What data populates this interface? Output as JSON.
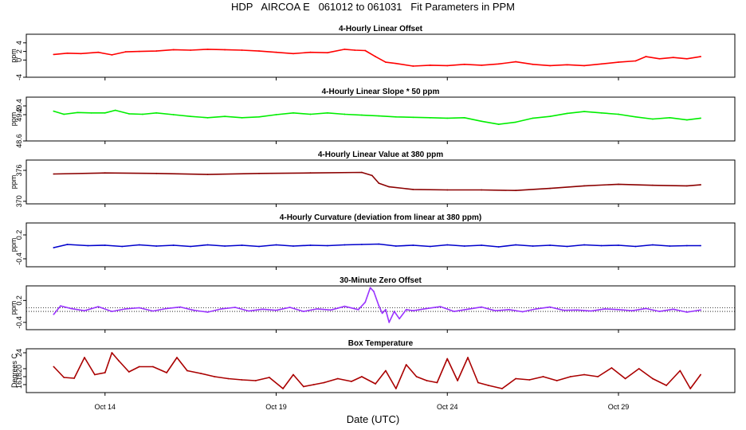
{
  "header": {
    "title": "HDP   AIRCOA E   061012 to 061031   Fit Parameters in PPM"
  },
  "x_axis": {
    "label": "Date (UTC)",
    "tick_labels": [
      "Oct 14",
      "Oct 19",
      "Oct 24",
      "Oct 29"
    ]
  },
  "chart_data": [
    {
      "type": "line",
      "title": "4-Hourly Linear Offset",
      "ylabel": "ppm",
      "ylim": [
        -4,
        6
      ],
      "y_ticks": [
        -4,
        0,
        2,
        4
      ],
      "color": "#ff0000",
      "series": [
        {
          "x": [
            12.5,
            12.9,
            13.3,
            13.8,
            14.2,
            14.6,
            15.0,
            15.5,
            16.0,
            16.5,
            17.0,
            17.5,
            18.0,
            18.5,
            19.0,
            19.5,
            20.0,
            20.5,
            21.0,
            21.3,
            21.6,
            21.9,
            22.2,
            22.5,
            23.0,
            23.5,
            24.0,
            24.5,
            25.0,
            25.5,
            26.0,
            26.5,
            27.0,
            27.5,
            28.0,
            28.5,
            29.0,
            29.5,
            29.8,
            30.2,
            30.6,
            31.0,
            31.4
          ],
          "y": [
            1.3,
            1.6,
            1.5,
            1.8,
            1.2,
            1.9,
            2.0,
            2.1,
            2.4,
            2.3,
            2.5,
            2.4,
            2.3,
            2.1,
            1.8,
            1.5,
            1.8,
            1.7,
            2.5,
            2.3,
            2.2,
            0.8,
            -0.5,
            -0.8,
            -1.4,
            -1.2,
            -1.3,
            -1.0,
            -1.2,
            -0.9,
            -0.4,
            -1.0,
            -1.3,
            -1.1,
            -1.3,
            -0.9,
            -0.5,
            -0.2,
            0.8,
            0.3,
            0.6,
            0.3,
            0.8
          ]
        }
      ]
    },
    {
      "type": "line",
      "title": "4-Hourly Linear Slope * 50 ppm",
      "ylabel": "ppm",
      "ylim": [
        48.6,
        49.6
      ],
      "y_ticks": [
        48.6,
        49.2,
        49.4
      ],
      "color": "#00ee00",
      "series": [
        {
          "x": [
            12.5,
            12.8,
            13.2,
            13.6,
            14.0,
            14.3,
            14.7,
            15.1,
            15.5,
            16.0,
            16.5,
            17.0,
            17.5,
            18.0,
            18.5,
            19.0,
            19.5,
            20.0,
            20.5,
            21.0,
            21.5,
            22.0,
            22.5,
            23.0,
            23.5,
            24.0,
            24.5,
            25.0,
            25.5,
            26.0,
            26.5,
            27.0,
            27.5,
            28.0,
            28.5,
            29.0,
            29.5,
            30.0,
            30.5,
            31.0,
            31.4
          ],
          "y": [
            49.28,
            49.21,
            49.25,
            49.24,
            49.24,
            49.3,
            49.22,
            49.21,
            49.24,
            49.2,
            49.16,
            49.13,
            49.16,
            49.13,
            49.15,
            49.2,
            49.24,
            49.21,
            49.24,
            49.21,
            49.19,
            49.17,
            49.15,
            49.14,
            49.13,
            49.12,
            49.13,
            49.05,
            48.98,
            49.03,
            49.12,
            49.16,
            49.23,
            49.27,
            49.24,
            49.21,
            49.15,
            49.1,
            49.13,
            49.08,
            49.12
          ]
        }
      ]
    },
    {
      "type": "line",
      "title": "4-Hourly Linear Value at 380 ppm",
      "ylabel": "ppm",
      "ylim": [
        369.5,
        378
      ],
      "y_ticks": [
        370,
        376
      ],
      "color": "#8b0000",
      "series": [
        {
          "x": [
            12.5,
            14.0,
            15.5,
            17.0,
            18.5,
            20.0,
            21.5,
            21.8,
            22.0,
            22.3,
            23.0,
            24.0,
            25.0,
            26.0,
            27.0,
            28.0,
            29.0,
            30.0,
            31.0,
            31.4
          ],
          "y": [
            375.3,
            375.5,
            375.4,
            375.2,
            375.4,
            375.5,
            375.6,
            375.0,
            373.5,
            372.8,
            372.3,
            372.2,
            372.2,
            372.1,
            372.5,
            373.0,
            373.3,
            373.1,
            373.0,
            373.2
          ]
        }
      ]
    },
    {
      "type": "line",
      "title": "4-Hourly Curvature (deviation from linear at 380 ppm)",
      "ylabel": "ppm",
      "ylim": [
        -0.6,
        0.5
      ],
      "y_ticks": [
        -0.4,
        0.2
      ],
      "color": "#0000cc",
      "series": [
        {
          "x": [
            12.5,
            12.9,
            13.5,
            14.0,
            14.5,
            15.0,
            15.5,
            16.0,
            16.5,
            17.0,
            17.5,
            18.0,
            18.5,
            19.0,
            19.5,
            20.0,
            20.5,
            21.0,
            21.5,
            22.0,
            22.5,
            23.0,
            23.5,
            24.0,
            24.5,
            25.0,
            25.5,
            26.0,
            26.5,
            27.0,
            27.5,
            28.0,
            28.5,
            29.0,
            29.5,
            30.0,
            30.5,
            31.0,
            31.4
          ],
          "y": [
            -0.12,
            -0.04,
            -0.07,
            -0.06,
            -0.09,
            -0.05,
            -0.08,
            -0.06,
            -0.09,
            -0.05,
            -0.08,
            -0.06,
            -0.09,
            -0.05,
            -0.08,
            -0.06,
            -0.07,
            -0.05,
            -0.04,
            -0.03,
            -0.08,
            -0.06,
            -0.09,
            -0.05,
            -0.08,
            -0.06,
            -0.1,
            -0.05,
            -0.08,
            -0.06,
            -0.09,
            -0.05,
            -0.07,
            -0.06,
            -0.09,
            -0.05,
            -0.08,
            -0.07,
            -0.07
          ]
        }
      ]
    },
    {
      "type": "line",
      "title": "30-Minute Zero Offset",
      "ylabel": "ppm",
      "ylim": [
        -0.6,
        0.6
      ],
      "y_ticks": [
        -0.4,
        0.2
      ],
      "color": "#9933ff",
      "series": [
        {
          "x": [
            12.5,
            12.7,
            13.0,
            13.4,
            13.8,
            14.2,
            14.6,
            15.0,
            15.4,
            15.8,
            16.2,
            16.6,
            17.0,
            17.4,
            17.8,
            18.2,
            18.6,
            19.0,
            19.4,
            19.8,
            20.2,
            20.6,
            21.0,
            21.4,
            21.6,
            21.75,
            21.85,
            22.0,
            22.1,
            22.2,
            22.3,
            22.45,
            22.6,
            22.8,
            23.0,
            23.4,
            23.8,
            24.2,
            24.6,
            25.0,
            25.4,
            25.8,
            26.2,
            26.6,
            27.0,
            27.4,
            27.8,
            28.2,
            28.6,
            29.0,
            29.4,
            29.8,
            30.2,
            30.6,
            31.0,
            31.4
          ],
          "y": [
            -0.18,
            0.05,
            -0.02,
            -0.08,
            0.03,
            -0.1,
            -0.03,
            0.0,
            -0.09,
            -0.02,
            0.02,
            -0.07,
            -0.12,
            -0.03,
            0.01,
            -0.09,
            -0.04,
            -0.07,
            0.01,
            -0.1,
            -0.03,
            -0.06,
            0.04,
            -0.05,
            0.15,
            0.55,
            0.45,
            0.05,
            -0.15,
            -0.05,
            -0.4,
            -0.1,
            -0.3,
            -0.05,
            -0.08,
            -0.02,
            0.03,
            -0.1,
            -0.04,
            0.02,
            -0.08,
            -0.05,
            -0.11,
            -0.03,
            0.02,
            -0.07,
            -0.06,
            -0.09,
            -0.03,
            -0.05,
            -0.08,
            -0.02,
            -0.1,
            -0.04,
            -0.12,
            -0.06
          ]
        }
      ],
      "reference_lines": [
        0,
        -0.1
      ]
    },
    {
      "type": "line",
      "title": "Box Temperature",
      "ylabel": "Degrees C",
      "ylim": [
        14,
        25
      ],
      "y_ticks": [
        16,
        18,
        20,
        24
      ],
      "color": "#aa0000",
      "series": [
        {
          "x": [
            12.5,
            12.8,
            13.1,
            13.4,
            13.7,
            14.0,
            14.2,
            14.4,
            14.7,
            15.0,
            15.4,
            15.8,
            16.1,
            16.4,
            16.8,
            17.2,
            17.6,
            18.0,
            18.4,
            18.8,
            19.2,
            19.5,
            19.8,
            20.1,
            20.4,
            20.8,
            21.2,
            21.5,
            21.9,
            22.2,
            22.5,
            22.8,
            23.1,
            23.4,
            23.7,
            24.0,
            24.3,
            24.6,
            24.9,
            25.2,
            25.6,
            26.0,
            26.4,
            26.8,
            27.2,
            27.6,
            28.0,
            28.4,
            28.8,
            29.2,
            29.6,
            30.0,
            30.4,
            30.8,
            31.1,
            31.4
          ],
          "y": [
            20.5,
            17.8,
            17.6,
            22.8,
            18.5,
            19.0,
            24.0,
            22.0,
            19.2,
            20.5,
            20.5,
            19.0,
            22.8,
            19.5,
            18.8,
            18.0,
            17.5,
            17.2,
            17.0,
            17.8,
            15.0,
            18.5,
            15.5,
            16.0,
            16.5,
            17.5,
            16.8,
            18.0,
            16.2,
            19.5,
            15.0,
            21.0,
            18.0,
            17.0,
            16.5,
            22.5,
            17.0,
            22.8,
            16.5,
            15.8,
            15.0,
            17.5,
            17.2,
            18.0,
            17.0,
            18.0,
            18.5,
            18.0,
            20.2,
            17.5,
            20.0,
            17.5,
            15.8,
            19.5,
            15.0,
            18.5
          ]
        }
      ]
    }
  ]
}
